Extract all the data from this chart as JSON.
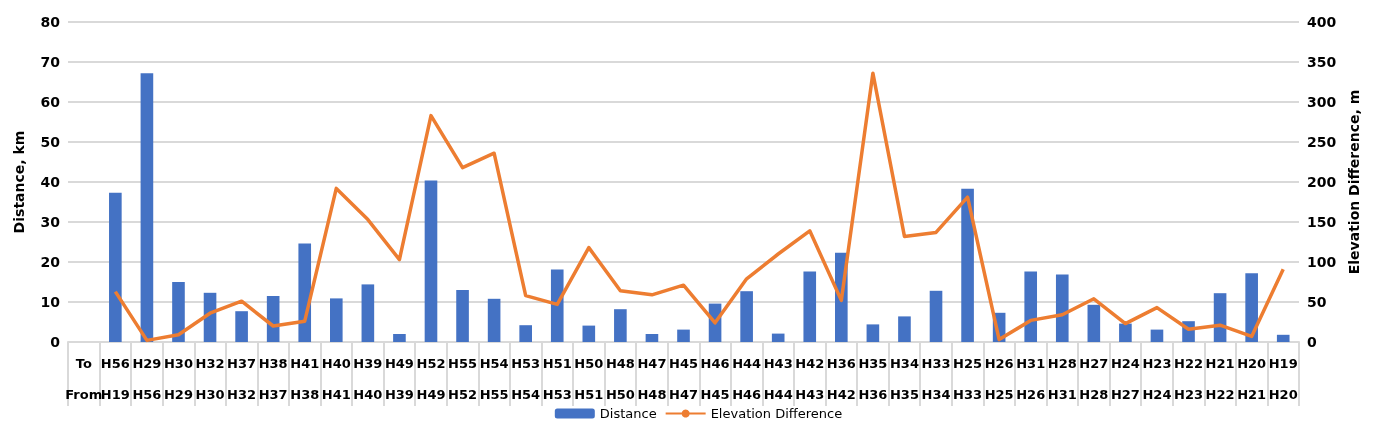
{
  "chart_data": {
    "type": "bar",
    "ylabel": "Distance, km",
    "y2label": "Elevation Difference, m",
    "categories": [
      "To\nFrom",
      "H56\nH19",
      "H29\nH56",
      "H30\nH29",
      "H32\nH30",
      "H37\nH32",
      "H38\nH37",
      "H41\nH38",
      "H40\nH41",
      "H39\nH40",
      "H49\nH39",
      "H52\nH49",
      "H55\nH52",
      "H54\nH55",
      "H53\nH54",
      "H51\nH53",
      "H50\nH51",
      "H48\nH50",
      "H47\nH48",
      "H45\nH47",
      "H46\nH45",
      "H44\nH46",
      "H43\nH44",
      "H42\nH43",
      "H36\nH42",
      "H35\nH36",
      "H34\nH35",
      "H33\nH34",
      "H25\nH33",
      "H26\nH25",
      "H31\nH26",
      "H28\nH31",
      "H27\nH28",
      "H24\nH27",
      "H23\nH24",
      "H22\nH23",
      "H21\nH22",
      "H20\nH21",
      "H19\nH20"
    ],
    "series": [
      {
        "name": "Distance",
        "color": "#4472c4",
        "values": [
          null,
          37.3,
          67.2,
          15,
          12.3,
          7.7,
          11.5,
          24.6,
          10.9,
          14.4,
          2,
          40.4,
          13,
          10.8,
          4.2,
          18.1,
          4.1,
          8.2,
          2,
          3.1,
          9.6,
          12.7,
          2.1,
          17.6,
          22.3,
          4.4,
          6.4,
          12.8,
          38.3,
          7.3,
          17.6,
          16.9,
          9.3,
          4.6,
          3.1,
          5.2,
          12.2,
          17.2,
          1.8
        ]
      },
      {
        "name": "Elevation Difference",
        "type": "line",
        "axis": "y2",
        "color": "#ed7d31",
        "values": [
          null,
          63,
          2,
          9,
          36,
          51,
          20,
          26,
          192,
          153,
          103,
          283,
          218,
          236,
          58,
          47,
          118,
          64,
          59,
          71,
          24,
          79,
          110,
          139,
          52,
          336,
          132,
          137,
          181,
          3,
          27,
          34,
          54,
          23,
          43,
          16,
          21,
          7,
          91
        ]
      }
    ],
    "ylim": [
      0,
      80
    ],
    "yticks": [
      0,
      10,
      20,
      30,
      40,
      50,
      60,
      70,
      80
    ],
    "y2lim": [
      0,
      400
    ],
    "y2ticks": [
      0,
      50,
      100,
      150,
      200,
      250,
      300,
      350,
      400
    ],
    "grid": "y",
    "legend": "bottom",
    "marker": "none",
    "line_style": "solid"
  }
}
